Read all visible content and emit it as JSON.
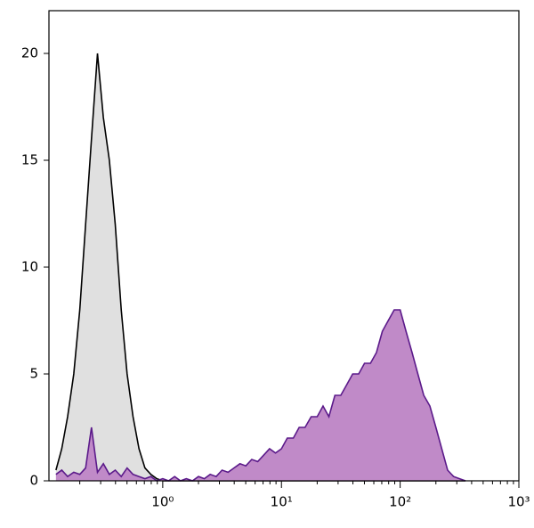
{
  "chart_data": {
    "type": "histogram-overlay",
    "x": [
      0.126,
      0.141,
      0.158,
      0.178,
      0.2,
      0.224,
      0.251,
      0.282,
      0.316,
      0.355,
      0.398,
      0.447,
      0.501,
      0.562,
      0.631,
      0.708,
      0.794,
      0.891,
      1,
      1.12,
      1.26,
      1.41,
      1.58,
      1.78,
      2,
      2.24,
      2.51,
      2.82,
      3.16,
      3.55,
      3.98,
      4.47,
      5.01,
      5.62,
      6.31,
      7.08,
      7.94,
      8.91,
      10,
      11.2,
      12.6,
      14.1,
      15.8,
      17.8,
      20,
      22.4,
      25.1,
      28.2,
      31.6,
      35.5,
      39.8,
      44.7,
      50.1,
      56.2,
      63.1,
      70.8,
      79.4,
      89.1,
      100,
      112,
      126,
      141,
      158,
      178,
      200,
      224,
      251,
      282,
      316,
      355
    ],
    "series": [
      {
        "color": "#000000",
        "fill": "#e0e0e0",
        "values": [
          0.5,
          1.5,
          3,
          5,
          8,
          12,
          16,
          20,
          17,
          15,
          12,
          8,
          5,
          3,
          1.5,
          0.6,
          0.3,
          0.1,
          0,
          0,
          0,
          0,
          0,
          0,
          0,
          0,
          0,
          0,
          0,
          0,
          0,
          0,
          0,
          0,
          0,
          0,
          0,
          0,
          0,
          0,
          0,
          0,
          0,
          0,
          0,
          0,
          0,
          0,
          0,
          0,
          0,
          0,
          0,
          0,
          0,
          0,
          0,
          0,
          0,
          0,
          0,
          0,
          0,
          0,
          0,
          0,
          0,
          0,
          0,
          0
        ]
      },
      {
        "color": "#5b1a8a",
        "fill": "#c08ac8",
        "values": [
          0.3,
          0.5,
          0.2,
          0.4,
          0.3,
          0.6,
          2.5,
          0.4,
          0.8,
          0.3,
          0.5,
          0.2,
          0.6,
          0.3,
          0.2,
          0.1,
          0.2,
          0,
          0.1,
          0,
          0.2,
          0,
          0.1,
          0,
          0.2,
          0.1,
          0.3,
          0.2,
          0.5,
          0.4,
          0.6,
          0.8,
          0.7,
          1,
          0.9,
          1.2,
          1.5,
          1.3,
          1.5,
          2,
          2,
          2.5,
          2.5,
          3,
          3,
          3.5,
          3,
          4,
          4,
          4.5,
          5,
          5,
          5.5,
          5.5,
          6,
          7,
          7.5,
          8,
          8,
          7,
          6,
          5,
          4,
          3.5,
          2.5,
          1.5,
          0.5,
          0.2,
          0.1,
          0
        ]
      }
    ],
    "xscale": "log",
    "xlim": [
      0.11,
      1000
    ],
    "xticks": [
      {
        "value": 1,
        "label": "10⁰"
      },
      {
        "value": 10,
        "label": "10¹"
      },
      {
        "value": 100,
        "label": "10²"
      },
      {
        "value": 1000,
        "label": "10³"
      }
    ],
    "xminorticks": [
      0.2,
      0.3,
      0.4,
      0.5,
      0.6,
      0.7,
      0.8,
      0.9,
      2,
      3,
      4,
      5,
      6,
      7,
      8,
      9,
      20,
      30,
      40,
      50,
      60,
      70,
      80,
      90,
      200,
      300,
      400,
      500,
      600,
      700,
      800,
      900
    ],
    "ylim": [
      0,
      22
    ],
    "yticks": [
      0,
      5,
      10,
      15,
      20
    ]
  }
}
